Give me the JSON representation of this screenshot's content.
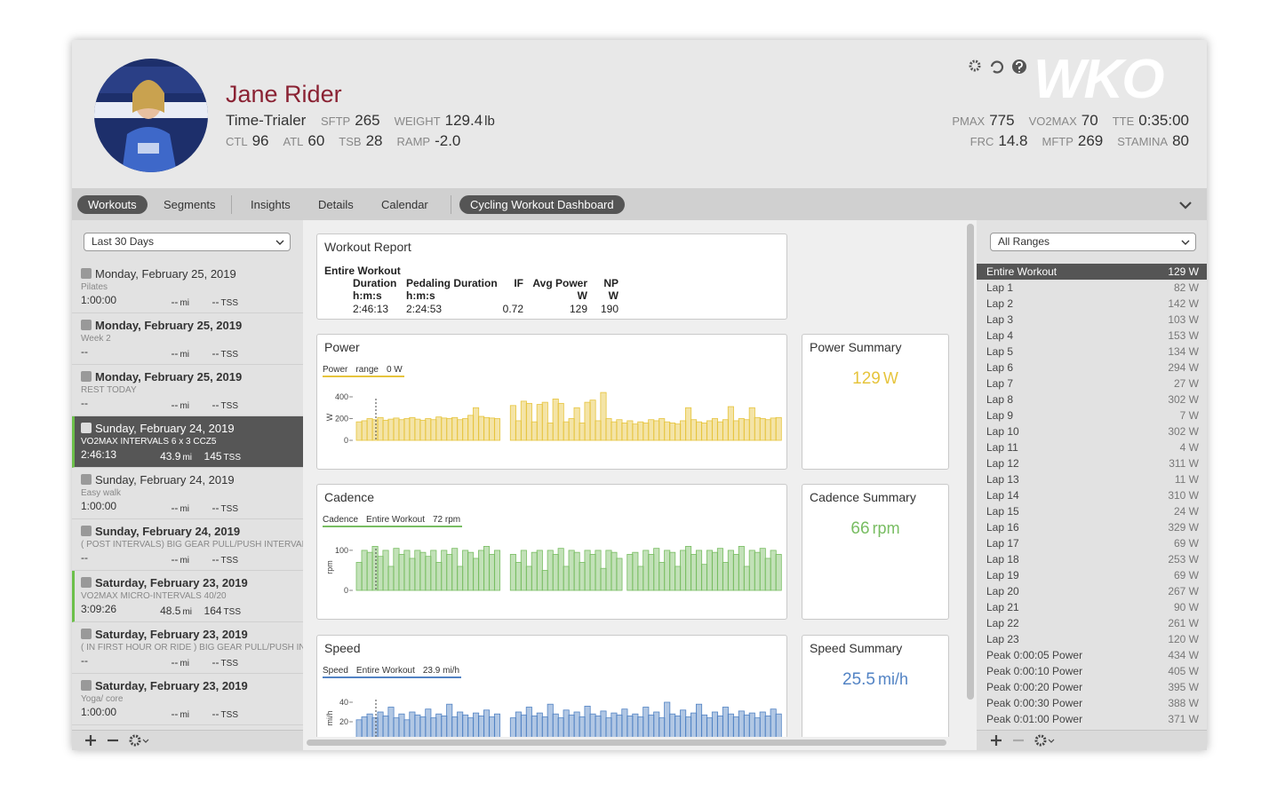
{
  "header": {
    "name": "Jane Rider",
    "category": "Time-Trialer",
    "logo": "WKO",
    "stats_left": [
      [
        {
          "label": "SFTP",
          "value": "265"
        },
        {
          "label": "WEIGHT",
          "value": "129.4",
          "unit": "lb"
        }
      ],
      [
        {
          "label": "CTL",
          "value": "96"
        },
        {
          "label": "ATL",
          "value": "60"
        },
        {
          "label": "TSB",
          "value": "28"
        },
        {
          "label": "RAMP",
          "value": "-2.0"
        }
      ]
    ],
    "stats_right": [
      [
        {
          "label": "PMAX",
          "value": "775"
        },
        {
          "label": "VO2MAX",
          "value": "70"
        },
        {
          "label": "TTE",
          "value": "0:35:00"
        }
      ],
      [
        {
          "label": "FRC",
          "value": "14.8"
        },
        {
          "label": "MFTP",
          "value": "269"
        },
        {
          "label": "STAMINA",
          "value": "80"
        }
      ]
    ]
  },
  "tabs": [
    {
      "label": "Workouts",
      "active": true
    },
    {
      "label": "Segments",
      "active": false
    },
    {
      "label": "Insights",
      "active": false
    },
    {
      "label": "Details",
      "active": false
    },
    {
      "label": "Calendar",
      "active": false
    },
    {
      "label": "Cycling Workout Dashboard",
      "active": true
    }
  ],
  "left_panel": {
    "filter": "Last 30 Days",
    "workouts": [
      {
        "date": "Monday, February 25, 2019",
        "note": "Pilates",
        "duration": "1:00:00",
        "distance": "--",
        "distance_unit": "mi",
        "tss": "--",
        "tss_unit": "TSS",
        "bold": false,
        "selected": false,
        "marked": false
      },
      {
        "date": "Monday, February 25, 2019",
        "note": "Week 2",
        "duration": "--",
        "distance": "--",
        "distance_unit": "mi",
        "tss": "--",
        "tss_unit": "TSS",
        "bold": true,
        "selected": false,
        "marked": false
      },
      {
        "date": "Monday, February 25, 2019",
        "note": "REST TODAY",
        "duration": "--",
        "distance": "--",
        "distance_unit": "mi",
        "tss": "--",
        "tss_unit": "TSS",
        "bold": true,
        "selected": false,
        "marked": false
      },
      {
        "date": "Sunday, February 24, 2019",
        "note": "VO2MAX INTERVALS 6 x 3 CCZ5",
        "duration": "2:46:13",
        "distance": "43.9",
        "distance_unit": "mi",
        "tss": "145",
        "tss_unit": "TSS",
        "bold": false,
        "selected": true,
        "marked": true
      },
      {
        "date": "Sunday, February 24, 2019",
        "note": "Easy walk",
        "duration": "1:00:00",
        "distance": "--",
        "distance_unit": "mi",
        "tss": "--",
        "tss_unit": "TSS",
        "bold": false,
        "selected": false,
        "marked": false
      },
      {
        "date": "Sunday, February 24, 2019",
        "note": "( POST INTERVALS) BIG GEAR PULL/PUSH INTERVALS",
        "duration": "--",
        "distance": "--",
        "distance_unit": "mi",
        "tss": "--",
        "tss_unit": "TSS",
        "bold": true,
        "selected": false,
        "marked": false
      },
      {
        "date": "Saturday, February 23, 2019",
        "note": "VO2MAX MICRO-INTERVALS 40/20",
        "duration": "3:09:26",
        "distance": "48.5",
        "distance_unit": "mi",
        "tss": "164",
        "tss_unit": "TSS",
        "bold": true,
        "selected": false,
        "marked": true
      },
      {
        "date": "Saturday, February 23, 2019",
        "note": "( IN FIRST HOUR OR RIDE ) BIG GEAR PULL/PUSH INTERVALS",
        "duration": "--",
        "distance": "--",
        "distance_unit": "mi",
        "tss": "--",
        "tss_unit": "TSS",
        "bold": true,
        "selected": false,
        "marked": false
      },
      {
        "date": "Saturday, February 23, 2019",
        "note": "Yoga/ core",
        "duration": "1:00:00",
        "distance": "--",
        "distance_unit": "mi",
        "tss": "--",
        "tss_unit": "TSS",
        "bold": true,
        "selected": false,
        "marked": false
      }
    ]
  },
  "report": {
    "title": "Workout Report",
    "section": "Entire Workout",
    "columns": [
      {
        "head": [
          "Duration",
          "h:m:s"
        ],
        "value": "2:46:13",
        "align": "left"
      },
      {
        "head": [
          "Pedaling Duration",
          "h:m:s"
        ],
        "value": "2:24:53",
        "align": "left"
      },
      {
        "head": [
          "IF"
        ],
        "value": "0.72",
        "align": "right"
      },
      {
        "head": [
          "Avg Power",
          "W"
        ],
        "value": "129",
        "align": "right"
      },
      {
        "head": [
          "NP",
          "W"
        ],
        "value": "190",
        "align": "right"
      }
    ]
  },
  "charts": [
    {
      "type": "bar",
      "title": "Power",
      "legend": [
        "Power",
        "range",
        "0 W"
      ],
      "ylabel": "W",
      "color": "#e6c43c",
      "ylim": [
        0,
        449
      ],
      "yticks": [
        400,
        200,
        0
      ],
      "values": [
        170,
        180,
        200,
        190,
        210,
        185,
        195,
        205,
        190,
        200,
        210,
        195,
        185,
        200,
        190,
        215,
        205,
        200,
        210,
        190,
        200,
        230,
        300,
        220,
        210,
        205,
        200,
        null,
        null,
        320,
        180,
        360,
        340,
        170,
        330,
        350,
        160,
        380,
        340,
        170,
        200,
        300,
        160,
        350,
        370,
        180,
        440,
        200,
        170,
        190,
        160,
        180,
        150,
        170,
        160,
        190,
        180,
        200,
        170,
        160,
        150,
        180,
        300,
        190,
        170,
        160,
        180,
        200,
        170,
        190,
        310,
        180,
        200,
        190,
        300,
        210,
        200,
        190,
        205,
        210
      ],
      "summary": {
        "title": "Power Summary",
        "value": "129",
        "unit": "W"
      }
    },
    {
      "type": "bar",
      "title": "Cadence",
      "legend": [
        "Cadence",
        "Entire Workout",
        "72 rpm"
      ],
      "ylabel": "rpm",
      "color": "#78bd62",
      "ylim": [
        0,
        122
      ],
      "yticks": [
        100,
        0
      ],
      "values": [
        70,
        100,
        95,
        110,
        85,
        100,
        60,
        105,
        90,
        100,
        80,
        100,
        95,
        85,
        100,
        70,
        100,
        90,
        105,
        60,
        100,
        95,
        80,
        100,
        110,
        90,
        100,
        null,
        null,
        90,
        70,
        100,
        60,
        95,
        100,
        50,
        100,
        90,
        105,
        60,
        100,
        95,
        70,
        100,
        90,
        100,
        55,
        100,
        95,
        80,
        null,
        90,
        95,
        60,
        100,
        90,
        105,
        70,
        100,
        95,
        60,
        100,
        110,
        90,
        100,
        65,
        100,
        95,
        105,
        70,
        100,
        90,
        110,
        60,
        100,
        95,
        105,
        80,
        100,
        90
      ],
      "summary": {
        "title": "Cadence Summary",
        "value": "66",
        "unit": "rpm"
      }
    },
    {
      "type": "bar",
      "title": "Speed",
      "legend": [
        "Speed",
        "Entire Workout",
        "23.9 mi/h"
      ],
      "ylabel": "mi/h",
      "color": "#5283c4",
      "ylim": [
        0,
        50
      ],
      "yticks": [
        40,
        20
      ],
      "values": [
        22,
        25,
        28,
        24,
        30,
        26,
        35,
        24,
        28,
        22,
        30,
        27,
        25,
        33,
        24,
        28,
        26,
        38,
        25,
        30,
        27,
        24,
        29,
        26,
        32,
        25,
        28,
        null,
        null,
        24,
        30,
        27,
        35,
        26,
        29,
        25,
        38,
        28,
        24,
        32,
        27,
        30,
        25,
        36,
        28,
        26,
        31,
        24,
        29,
        27,
        33,
        26,
        28,
        25,
        35,
        27,
        30,
        24,
        40,
        28,
        26,
        32,
        25,
        29,
        38,
        27,
        24,
        30,
        26,
        35,
        28,
        25,
        31,
        27,
        29,
        24,
        30,
        26,
        33,
        28
      ],
      "summary": {
        "title": "Speed Summary",
        "value": "25.5",
        "unit": "mi/h"
      }
    }
  ],
  "right_panel": {
    "filter": "All Ranges",
    "ranges": [
      {
        "name": "Entire Workout",
        "value": "129 W",
        "selected": true
      },
      {
        "name": "Lap 1",
        "value": "82 W"
      },
      {
        "name": "Lap 2",
        "value": "142 W"
      },
      {
        "name": "Lap 3",
        "value": "103 W"
      },
      {
        "name": "Lap 4",
        "value": "153 W"
      },
      {
        "name": "Lap 5",
        "value": "134 W"
      },
      {
        "name": "Lap 6",
        "value": "294 W"
      },
      {
        "name": "Lap 7",
        "value": "27 W"
      },
      {
        "name": "Lap 8",
        "value": "302 W"
      },
      {
        "name": "Lap 9",
        "value": "7 W"
      },
      {
        "name": "Lap 10",
        "value": "302 W"
      },
      {
        "name": "Lap 11",
        "value": "4 W"
      },
      {
        "name": "Lap 12",
        "value": "311 W"
      },
      {
        "name": "Lap 13",
        "value": "11 W"
      },
      {
        "name": "Lap 14",
        "value": "310 W"
      },
      {
        "name": "Lap 15",
        "value": "24 W"
      },
      {
        "name": "Lap 16",
        "value": "329 W"
      },
      {
        "name": "Lap 17",
        "value": "69 W"
      },
      {
        "name": "Lap 18",
        "value": "253 W"
      },
      {
        "name": "Lap 19",
        "value": "69 W"
      },
      {
        "name": "Lap 20",
        "value": "267 W"
      },
      {
        "name": "Lap 21",
        "value": "90 W"
      },
      {
        "name": "Lap 22",
        "value": "261 W"
      },
      {
        "name": "Lap 23",
        "value": "120 W"
      },
      {
        "name": "Peak 0:00:05 Power",
        "value": "434 W"
      },
      {
        "name": "Peak 0:00:10 Power",
        "value": "405 W"
      },
      {
        "name": "Peak 0:00:20 Power",
        "value": "395 W"
      },
      {
        "name": "Peak 0:00:30 Power",
        "value": "388 W"
      },
      {
        "name": "Peak 0:01:00 Power",
        "value": "371 W"
      }
    ]
  }
}
